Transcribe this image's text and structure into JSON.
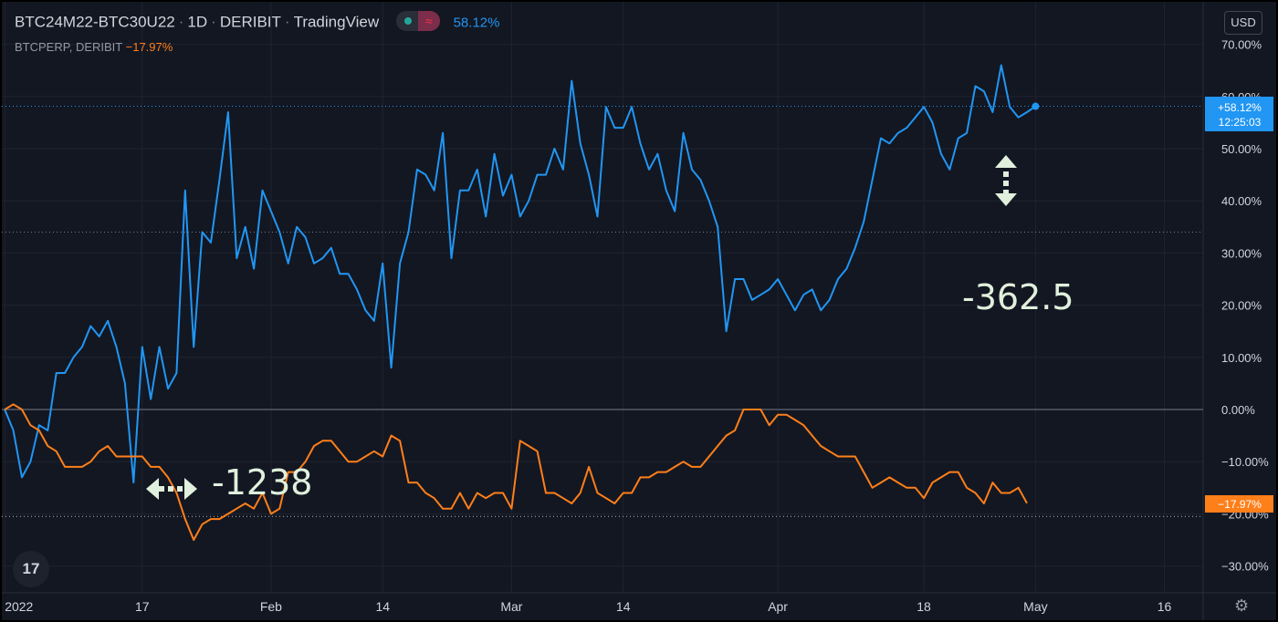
{
  "header": {
    "symbol": "BTC24M22-BTC30U22",
    "interval": "1D",
    "exchange": "DERIBIT",
    "brand": "TradingView",
    "main_value": "58.12%",
    "compare_symbol": "BTCPERP, DERIBIT",
    "compare_value": "−17.97%",
    "currency": "USD",
    "logo_text": "17"
  },
  "colors": {
    "background": "#131722",
    "series_main": "#2196f3",
    "series_compare": "#ff7f1a",
    "annotation": "#e0f0dc"
  },
  "icons": {
    "settings": "gear-icon",
    "indicator": "pill-icon"
  },
  "price_labels": {
    "main_line1": "+58.12%",
    "main_line2": "12:25:03",
    "compare": "−17.97%"
  },
  "annotations": {
    "spread_right": "-362.5",
    "spread_left": "-1238"
  },
  "chart_data": {
    "type": "line",
    "yaxis": {
      "ticks": [
        "70.00%",
        "60.00%",
        "50.00%",
        "40.00%",
        "30.00%",
        "20.00%",
        "10.00%",
        "0.00%",
        "−10.00%",
        "−20.00%",
        "−30.00%"
      ],
      "ylim": [
        -35,
        73
      ],
      "unit": "%"
    },
    "xaxis": {
      "ticks": [
        "2022",
        "17",
        "Feb",
        "14",
        "Mar",
        "14",
        "Apr",
        "18",
        "May",
        "16"
      ],
      "range": [
        "2022-01-01",
        "2022-05-22"
      ]
    },
    "series": [
      {
        "values": [
          [
            0,
            0
          ],
          [
            1,
            -4
          ],
          [
            2,
            -13
          ],
          [
            3,
            -10
          ],
          [
            4,
            -3
          ],
          [
            5,
            -4
          ],
          [
            6,
            7
          ],
          [
            7,
            7
          ],
          [
            8,
            10
          ],
          [
            9,
            12
          ],
          [
            10,
            16
          ],
          [
            11,
            14
          ],
          [
            12,
            17
          ],
          [
            13,
            12
          ],
          [
            14,
            5
          ],
          [
            15,
            -14
          ],
          [
            16,
            12
          ],
          [
            17,
            2
          ],
          [
            18,
            12
          ],
          [
            19,
            4
          ],
          [
            20,
            7
          ],
          [
            21,
            42
          ],
          [
            22,
            12
          ],
          [
            23,
            34
          ],
          [
            24,
            32
          ],
          [
            25,
            44
          ],
          [
            26,
            57
          ],
          [
            27,
            29
          ],
          [
            28,
            35
          ],
          [
            29,
            27
          ],
          [
            30,
            42
          ],
          [
            31,
            38
          ],
          [
            32,
            34
          ],
          [
            33,
            28
          ],
          [
            34,
            35
          ],
          [
            35,
            33
          ],
          [
            36,
            28
          ],
          [
            37,
            29
          ],
          [
            38,
            31
          ],
          [
            39,
            26
          ],
          [
            40,
            26
          ],
          [
            41,
            23
          ],
          [
            42,
            19
          ],
          [
            43,
            17
          ],
          [
            44,
            28
          ],
          [
            45,
            8
          ],
          [
            46,
            28
          ],
          [
            47,
            34
          ],
          [
            48,
            46
          ],
          [
            49,
            45
          ],
          [
            50,
            42
          ],
          [
            51,
            53
          ],
          [
            52,
            29
          ],
          [
            53,
            42
          ],
          [
            54,
            42
          ],
          [
            55,
            46
          ],
          [
            56,
            37
          ],
          [
            57,
            49
          ],
          [
            58,
            41
          ],
          [
            59,
            45
          ],
          [
            60,
            37
          ],
          [
            61,
            40
          ],
          [
            62,
            45
          ],
          [
            63,
            45
          ],
          [
            64,
            50
          ],
          [
            65,
            46
          ],
          [
            66,
            63
          ],
          [
            67,
            51
          ],
          [
            68,
            45
          ],
          [
            69,
            37
          ],
          [
            70,
            58
          ],
          [
            71,
            54
          ],
          [
            72,
            54
          ],
          [
            73,
            58
          ],
          [
            74,
            51
          ],
          [
            75,
            46
          ],
          [
            76,
            49
          ],
          [
            77,
            42
          ],
          [
            78,
            38
          ],
          [
            79,
            53
          ],
          [
            80,
            46
          ],
          [
            81,
            44
          ],
          [
            82,
            40
          ],
          [
            83,
            35
          ],
          [
            84,
            15
          ],
          [
            85,
            25
          ],
          [
            86,
            25
          ],
          [
            87,
            21
          ],
          [
            88,
            22
          ],
          [
            89,
            23
          ],
          [
            90,
            25
          ],
          [
            91,
            22
          ],
          [
            92,
            19
          ],
          [
            93,
            22
          ],
          [
            94,
            23
          ],
          [
            95,
            19
          ],
          [
            96,
            21
          ],
          [
            97,
            25
          ],
          [
            98,
            27
          ],
          [
            99,
            31
          ],
          [
            100,
            36
          ],
          [
            101,
            44
          ],
          [
            102,
            52
          ],
          [
            103,
            51
          ],
          [
            104,
            53
          ],
          [
            105,
            54
          ],
          [
            106,
            56
          ],
          [
            107,
            58
          ],
          [
            108,
            55
          ],
          [
            109,
            49
          ],
          [
            110,
            46
          ],
          [
            111,
            52
          ],
          [
            112,
            53
          ],
          [
            113,
            62
          ],
          [
            114,
            61
          ],
          [
            115,
            57
          ],
          [
            116,
            66
          ],
          [
            117,
            58
          ],
          [
            118,
            56
          ],
          [
            119,
            57
          ],
          [
            120,
            58.12
          ]
        ]
      },
      {
        "values": [
          [
            0,
            0
          ],
          [
            1,
            1
          ],
          [
            2,
            0
          ],
          [
            3,
            -3
          ],
          [
            4,
            -4
          ],
          [
            5,
            -7
          ],
          [
            6,
            -8
          ],
          [
            7,
            -11
          ],
          [
            8,
            -11
          ],
          [
            9,
            -11
          ],
          [
            10,
            -10
          ],
          [
            11,
            -8
          ],
          [
            12,
            -7
          ],
          [
            13,
            -9
          ],
          [
            14,
            -9
          ],
          [
            15,
            -9
          ],
          [
            16,
            -9
          ],
          [
            17,
            -11
          ],
          [
            18,
            -11
          ],
          [
            19,
            -13
          ],
          [
            20,
            -16
          ],
          [
            21,
            -21
          ],
          [
            22,
            -25
          ],
          [
            23,
            -22
          ],
          [
            24,
            -21
          ],
          [
            25,
            -21
          ],
          [
            26,
            -20
          ],
          [
            27,
            -19
          ],
          [
            28,
            -18
          ],
          [
            29,
            -19
          ],
          [
            30,
            -16
          ],
          [
            31,
            -20
          ],
          [
            32,
            -19
          ],
          [
            33,
            -12
          ],
          [
            34,
            -12
          ],
          [
            35,
            -10
          ],
          [
            36,
            -7
          ],
          [
            37,
            -6
          ],
          [
            38,
            -6
          ],
          [
            39,
            -8
          ],
          [
            40,
            -10
          ],
          [
            41,
            -10
          ],
          [
            42,
            -9
          ],
          [
            43,
            -8
          ],
          [
            44,
            -9
          ],
          [
            45,
            -5
          ],
          [
            46,
            -6
          ],
          [
            47,
            -14
          ],
          [
            48,
            -14
          ],
          [
            49,
            -16
          ],
          [
            50,
            -17
          ],
          [
            51,
            -19
          ],
          [
            52,
            -19
          ],
          [
            53,
            -16
          ],
          [
            54,
            -19
          ],
          [
            55,
            -16
          ],
          [
            56,
            -17
          ],
          [
            57,
            -16
          ],
          [
            58,
            -16
          ],
          [
            59,
            -19
          ],
          [
            60,
            -6
          ],
          [
            61,
            -7
          ],
          [
            62,
            -8
          ],
          [
            63,
            -16
          ],
          [
            64,
            -16
          ],
          [
            65,
            -17
          ],
          [
            66,
            -18
          ],
          [
            67,
            -16
          ],
          [
            68,
            -11
          ],
          [
            69,
            -16
          ],
          [
            70,
            -17
          ],
          [
            71,
            -18
          ],
          [
            72,
            -16
          ],
          [
            73,
            -16
          ],
          [
            74,
            -13
          ],
          [
            75,
            -13
          ],
          [
            76,
            -12
          ],
          [
            77,
            -12
          ],
          [
            78,
            -11
          ],
          [
            79,
            -10
          ],
          [
            80,
            -11
          ],
          [
            81,
            -11
          ],
          [
            82,
            -9
          ],
          [
            83,
            -7
          ],
          [
            84,
            -5
          ],
          [
            85,
            -4
          ],
          [
            86,
            0
          ],
          [
            87,
            0
          ],
          [
            88,
            0
          ],
          [
            89,
            -3
          ],
          [
            90,
            -1
          ],
          [
            91,
            -1
          ],
          [
            92,
            -2
          ],
          [
            93,
            -3
          ],
          [
            94,
            -5
          ],
          [
            95,
            -7
          ],
          [
            96,
            -8
          ],
          [
            97,
            -9
          ],
          [
            98,
            -9
          ],
          [
            99,
            -9
          ],
          [
            100,
            -12
          ],
          [
            101,
            -15
          ],
          [
            102,
            -14
          ],
          [
            103,
            -13
          ],
          [
            104,
            -14
          ],
          [
            105,
            -15
          ],
          [
            106,
            -15
          ],
          [
            107,
            -17
          ],
          [
            108,
            -14
          ],
          [
            109,
            -13
          ],
          [
            110,
            -12
          ],
          [
            111,
            -12
          ],
          [
            112,
            -15
          ],
          [
            113,
            -16
          ],
          [
            114,
            -18
          ],
          [
            115,
            -14
          ],
          [
            116,
            -16
          ],
          [
            117,
            -16
          ],
          [
            118,
            -15
          ],
          [
            119,
            -17.97
          ]
        ]
      }
    ]
  }
}
